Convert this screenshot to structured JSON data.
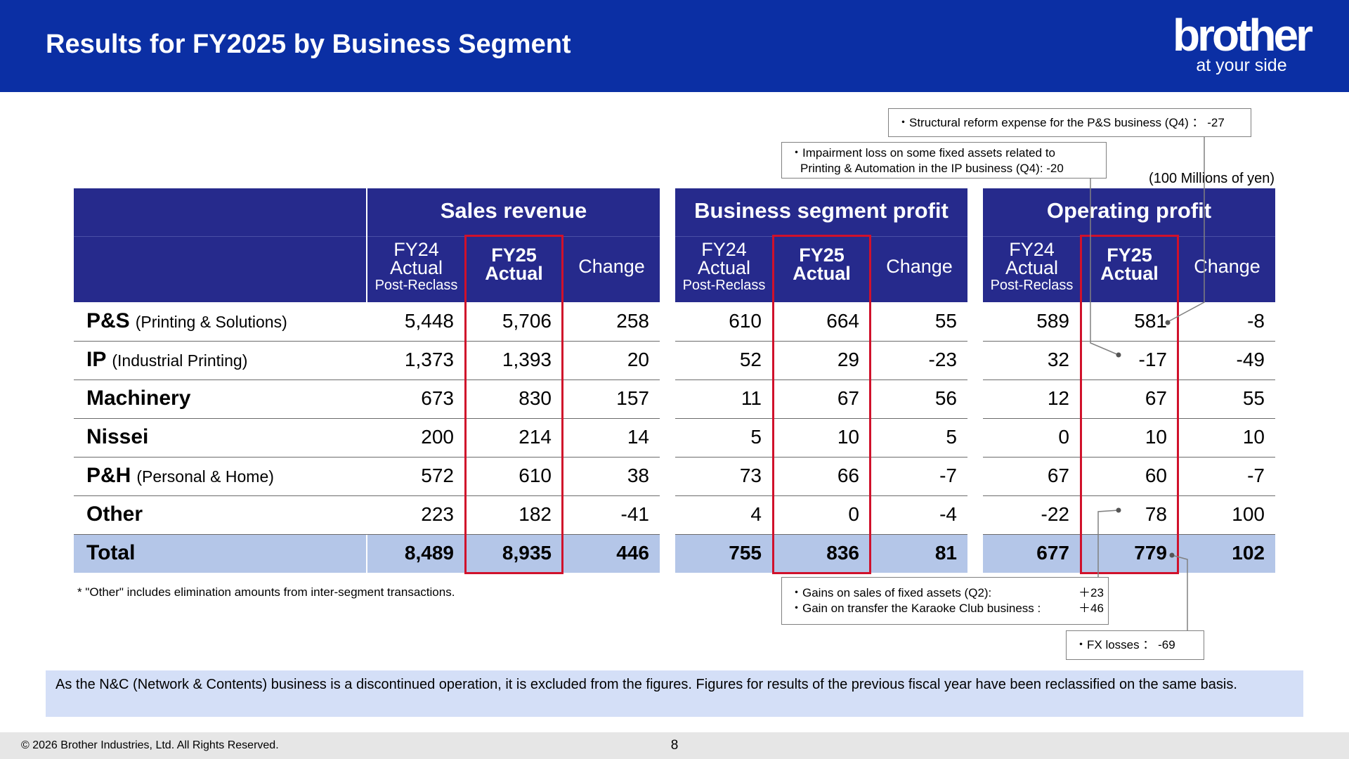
{
  "header": {
    "title": "Results for FY2025 by Business Segment",
    "logo_main": "brother",
    "logo_sub": "at your side"
  },
  "unit_note": "(100 Millions of yen)",
  "table": {
    "groups": [
      {
        "title": "Sales revenue",
        "columns": [
          {
            "l1": "FY24",
            "l2": "Actual",
            "l3": "Post-Reclass"
          },
          {
            "l1": "FY25",
            "l2": "Actual"
          },
          {
            "l1": "Change"
          }
        ]
      },
      {
        "title": "Business segment profit",
        "columns": [
          {
            "l1": "FY24",
            "l2": "Actual",
            "l3": "Post-Reclass"
          },
          {
            "l1": "FY25",
            "l2": "Actual"
          },
          {
            "l1": "Change"
          }
        ]
      },
      {
        "title": "Operating profit",
        "columns": [
          {
            "l1": "FY24",
            "l2": "Actual",
            "l3": "Post-Reclass"
          },
          {
            "l1": "FY25",
            "l2": "Actual"
          },
          {
            "l1": "Change"
          }
        ]
      }
    ],
    "rows": [
      {
        "label": "P&S",
        "sub": "(Printing & Solutions)",
        "values": [
          "5,448",
          "5,706",
          "258",
          "610",
          "664",
          "55",
          "589",
          "581",
          "-8"
        ]
      },
      {
        "label": "IP",
        "sub": "(Industrial Printing)",
        "values": [
          "1,373",
          "1,393",
          "20",
          "52",
          "29",
          "-23",
          "32",
          "-17",
          "-49"
        ]
      },
      {
        "label": "Machinery",
        "sub": "",
        "values": [
          "673",
          "830",
          "157",
          "11",
          "67",
          "56",
          "12",
          "67",
          "55"
        ]
      },
      {
        "label": "Nissei",
        "sub": "",
        "values": [
          "200",
          "214",
          "14",
          "5",
          "10",
          "5",
          "0",
          "10",
          "10"
        ]
      },
      {
        "label": "P&H",
        "sub": "(Personal & Home)",
        "values": [
          "572",
          "610",
          "38",
          "73",
          "66",
          "-7",
          "67",
          "60",
          "-7"
        ]
      },
      {
        "label": "Other",
        "sub": "",
        "values": [
          "223",
          "182",
          "-41",
          "4",
          "0",
          "-4",
          "-22",
          "78",
          "100"
        ]
      },
      {
        "label": "Total",
        "sub": "",
        "values": [
          "8,489",
          "8,935",
          "446",
          "755",
          "836",
          "81",
          "677",
          "779",
          "102"
        ]
      }
    ]
  },
  "callouts": {
    "structural": "・Structural reform expense for the P&S business (Q4) ： -27",
    "impairment_line1": "・Impairment loss on some fixed assets related to",
    "impairment_line2": "Printing & Automation in the IP business (Q4): -20",
    "gains_line1": "・Gains on sales of fixed assets (Q2):",
    "gains_amt1": "＋23",
    "gains_line2": "・Gain on transfer the Karaoke Club business :",
    "gains_amt2": "＋46",
    "fx": "・FX losses ： -69"
  },
  "footnote": "* \"Other\" includes elimination amounts from inter-segment transactions.",
  "info_text": "As the N&C (Network & Contents) business is a discontinued operation, it is excluded from the figures. Figures for results of the previous fiscal year have been reclassified on the same basis.",
  "footer": {
    "copyright": "© 2026 Brother Industries, Ltd. All Rights Reserved.",
    "page": "8"
  },
  "colors": {
    "header_bg": "#0b2fa4",
    "table_header_bg": "#262a8c",
    "total_row_bg": "#b4c6e8",
    "highlight_border": "#d0112b",
    "info_bg": "#d4dff7"
  }
}
